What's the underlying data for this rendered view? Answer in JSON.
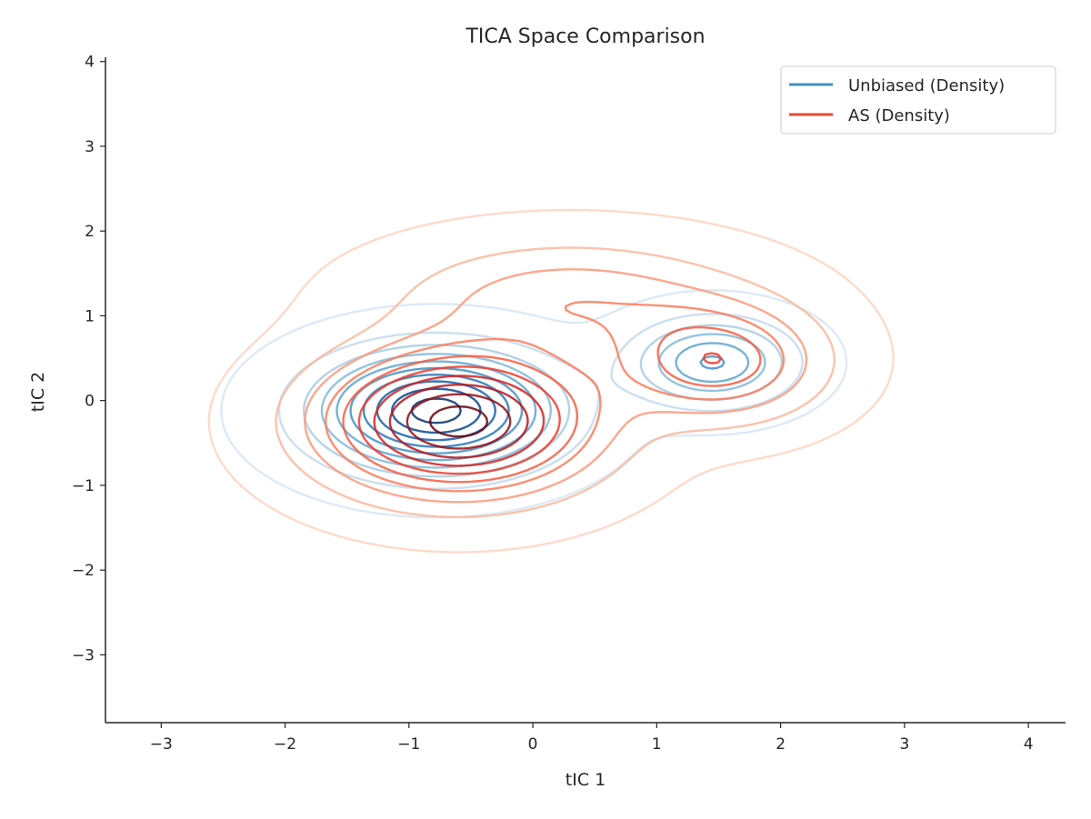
{
  "chart_data": {
    "type": "contour",
    "title": "TICA Space Comparison",
    "xlabel": "tIC 1",
    "ylabel": "tIC 2",
    "xlim": [
      -3.45,
      4.3
    ],
    "ylim": [
      -3.8,
      4.05
    ],
    "xticks": [
      -3,
      -2,
      -1,
      0,
      1,
      2,
      3,
      4
    ],
    "xtick_labels": [
      "−3",
      "−2",
      "−1",
      "0",
      "1",
      "2",
      "3",
      "4"
    ],
    "yticks": [
      -3,
      -2,
      -1,
      0,
      1,
      2,
      3,
      4
    ],
    "ytick_labels": [
      "−3",
      "−2",
      "−1",
      "0",
      "1",
      "2",
      "3",
      "4"
    ],
    "grid": false,
    "legend_position": "top-right",
    "series": [
      {
        "name": "Unbiased (Density)",
        "color": "#4292c6",
        "colormap": "Blues",
        "levels": 10,
        "modes": [
          {
            "center": [
              -0.78,
              -0.12
            ],
            "sigma": [
              0.62,
              0.45
            ],
            "weight": 1.0
          },
          {
            "center": [
              1.45,
              0.45
            ],
            "sigma": [
              0.42,
              0.33
            ],
            "weight": 0.55
          }
        ]
      },
      {
        "name": "AS (Density)",
        "color": "#e34a33",
        "colormap": "Reds",
        "levels": 10,
        "modes": [
          {
            "center": [
              -0.6,
              -0.25
            ],
            "sigma": [
              0.72,
              0.55
            ],
            "weight": 1.0
          },
          {
            "center": [
              1.5,
              0.45
            ],
            "sigma": [
              0.55,
              0.45
            ],
            "weight": 0.5
          },
          {
            "center": [
              0.3,
              1.2
            ],
            "sigma": [
              0.9,
              0.45
            ],
            "weight": 0.3
          }
        ]
      }
    ]
  }
}
